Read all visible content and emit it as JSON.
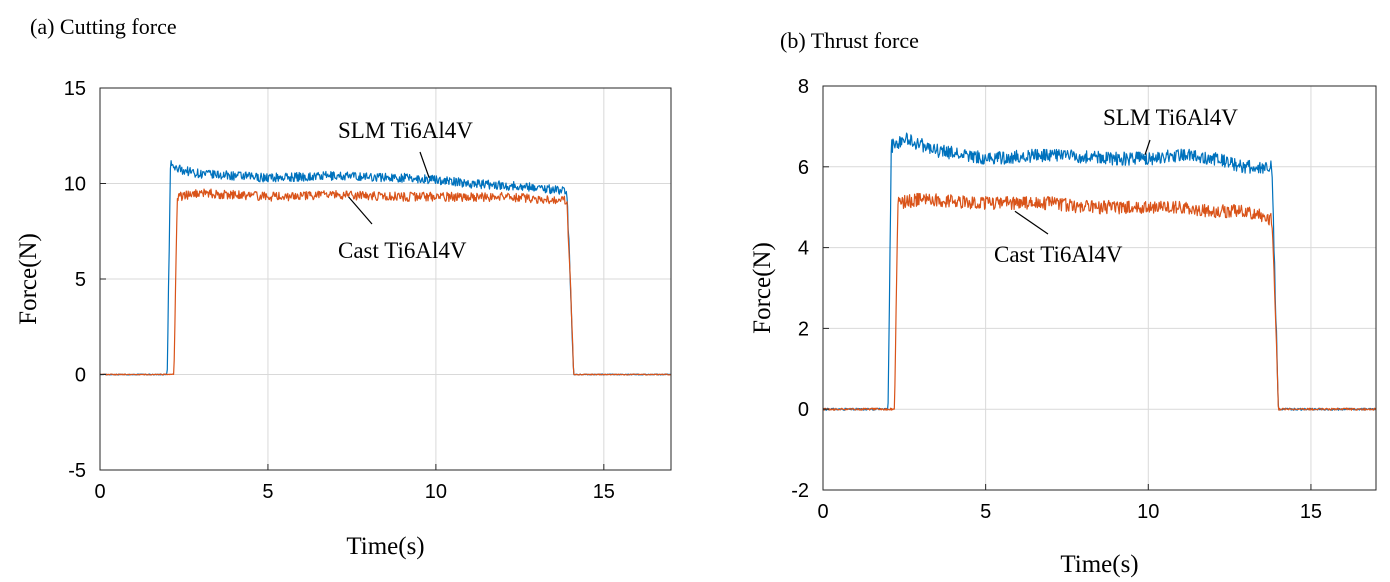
{
  "chart_data": [
    {
      "type": "line",
      "title": "(a) Cutting force",
      "xlabel": "Time(s)",
      "ylabel": "Force(N)",
      "xlim": [
        0,
        17
      ],
      "ylim": [
        -5,
        15
      ],
      "xticks": [
        0,
        5,
        10,
        15
      ],
      "yticks": [
        -5,
        0,
        5,
        10,
        15
      ],
      "grid": true,
      "series": [
        {
          "name": "SLM Ti6Al4V",
          "color": "#0072BD",
          "x": [
            0,
            2.0,
            2.1,
            2.2,
            3,
            5,
            7,
            9,
            10,
            11,
            12,
            13,
            13.9,
            14.0,
            14.1,
            17
          ],
          "y": [
            0,
            0,
            11.1,
            10.8,
            10.5,
            10.3,
            10.4,
            10.3,
            10.2,
            10.0,
            9.9,
            9.8,
            9.6,
            5,
            0,
            0
          ]
        },
        {
          "name": "Cast Ti6Al4V",
          "color": "#D95319",
          "x": [
            0,
            2.2,
            2.3,
            3,
            5,
            7,
            9,
            10,
            11,
            12,
            13,
            13.9,
            14.0,
            14.1,
            17
          ],
          "y": [
            0,
            0,
            9.3,
            9.5,
            9.3,
            9.4,
            9.3,
            9.3,
            9.3,
            9.3,
            9.2,
            9.1,
            5,
            0,
            0
          ]
        }
      ],
      "annotations": [
        {
          "text": "SLM Ti6Al4V",
          "series": "SLM Ti6Al4V",
          "x": 9.8,
          "y": 10.3
        },
        {
          "text": "Cast Ti6Al4V",
          "series": "Cast Ti6Al4V",
          "x": 7.4,
          "y": 9.3
        }
      ]
    },
    {
      "type": "line",
      "title": "(b) Thrust force",
      "xlabel": "Time(s)",
      "ylabel": "Force(N)",
      "xlim": [
        0,
        17
      ],
      "ylim": [
        -2,
        8
      ],
      "xticks": [
        0,
        5,
        10,
        15
      ],
      "yticks": [
        -2,
        0,
        2,
        4,
        6,
        8
      ],
      "grid": true,
      "series": [
        {
          "name": "SLM Ti6Al4V",
          "color": "#0072BD",
          "x": [
            0,
            2.0,
            2.1,
            2.5,
            3.5,
            5,
            7,
            9,
            10,
            11,
            12,
            13,
            13.8,
            13.9,
            14.0,
            17
          ],
          "y": [
            0,
            0,
            6.5,
            6.7,
            6.4,
            6.2,
            6.3,
            6.2,
            6.2,
            6.3,
            6.2,
            6.0,
            6.0,
            3,
            0,
            0
          ]
        },
        {
          "name": "Cast Ti6Al4V",
          "color": "#D95319",
          "x": [
            0,
            2.2,
            2.3,
            3,
            5,
            7,
            8,
            9,
            10,
            11,
            12,
            13,
            13.8,
            13.9,
            14.0,
            17
          ],
          "y": [
            0,
            0,
            5.1,
            5.2,
            5.1,
            5.1,
            5.0,
            5.0,
            5.0,
            5.0,
            4.9,
            4.9,
            4.7,
            2.5,
            0,
            0
          ]
        }
      ],
      "annotations": [
        {
          "text": "SLM Ti6Al4V",
          "series": "SLM Ti6Al4V",
          "x": 9.9,
          "y": 6.3
        },
        {
          "text": "Cast Ti6Al4V",
          "series": "Cast Ti6Al4V",
          "x": 5.9,
          "y": 4.9
        }
      ]
    }
  ]
}
